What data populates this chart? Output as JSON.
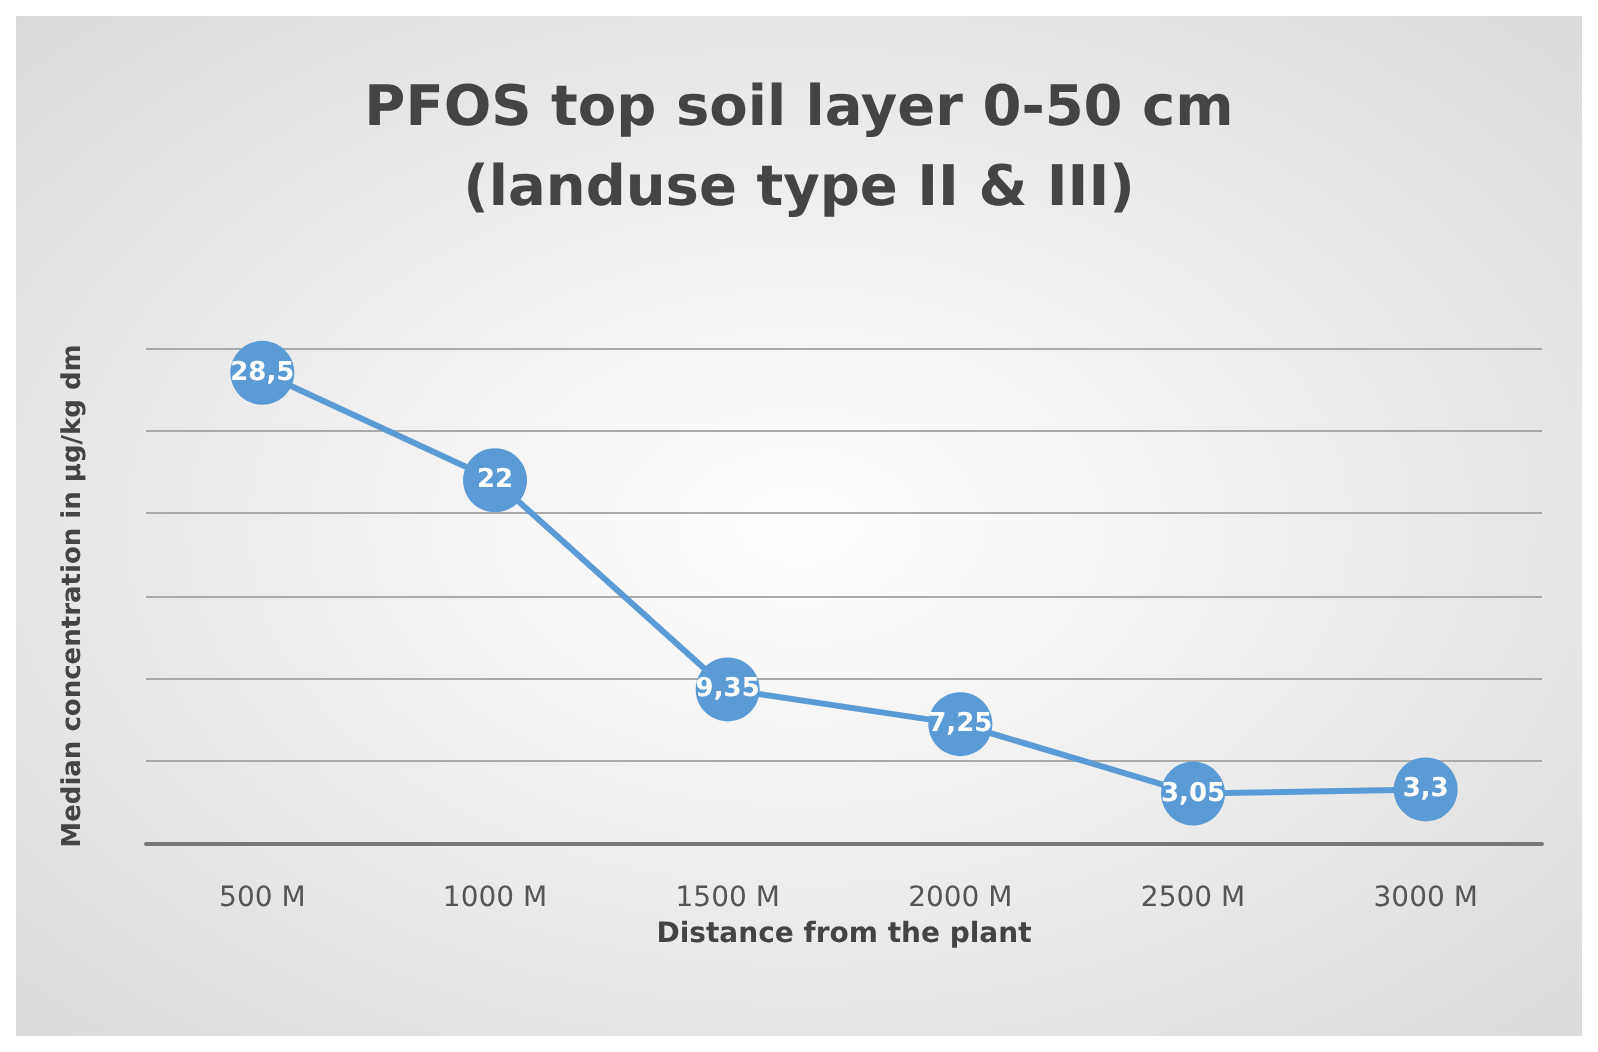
{
  "chart_data": {
    "type": "line",
    "title": "PFOS top soil layer 0-50 cm\n(landuse type II & III)",
    "xlabel": "Distance from the plant",
    "ylabel": "Median concentration in µg/kg dm",
    "categories": [
      "500 M",
      "1000 M",
      "1500 M",
      "2000 M",
      "2500 M",
      "3000 M"
    ],
    "series": [
      {
        "color": "#5b9bd5",
        "values": [
          28.5,
          22,
          9.35,
          7.25,
          3.05,
          3.3
        ],
        "value_labels": [
          "28,5",
          "22",
          "9,35",
          "7,25",
          "3,05",
          "3,3"
        ]
      }
    ],
    "ylim": [
      0,
      30
    ],
    "yticks": [
      {
        "value": 0,
        "label": null
      },
      {
        "value": 5,
        "label": null
      },
      {
        "value": 10,
        "label": null
      },
      {
        "value": 15,
        "label": null
      },
      {
        "value": 20,
        "label": null
      },
      {
        "value": 25,
        "label": null
      },
      {
        "value": 30,
        "label": null
      }
    ],
    "tick_labels": "x",
    "grid": "y",
    "marker": "circle",
    "line_style": "solid"
  }
}
